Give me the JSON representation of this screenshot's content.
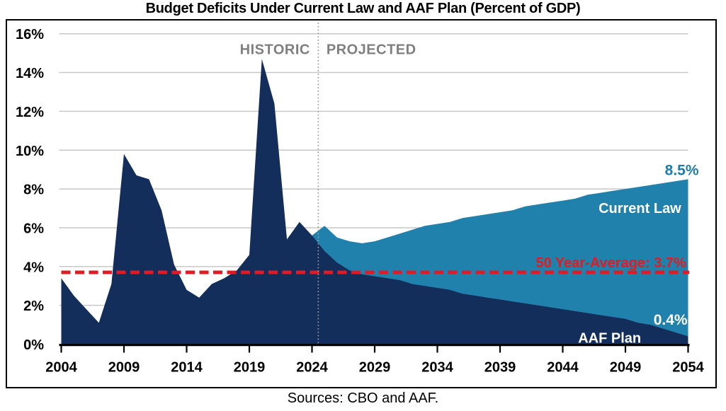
{
  "title": "Budget Deficits Under Current Law and AAF Plan (Percent of GDP)",
  "source_note": "Sources: CBO and AAF.",
  "chart_data": {
    "type": "area",
    "title": "Budget Deficits Under Current Law and AAF Plan (Percent of GDP)",
    "xlabel": "",
    "ylabel": "",
    "xlim": [
      2004,
      2054
    ],
    "ylim": [
      0,
      16
    ],
    "grid": true,
    "x_ticks": [
      2004,
      2009,
      2014,
      2019,
      2024,
      2029,
      2034,
      2039,
      2044,
      2049,
      2054
    ],
    "y_tick_values": [
      0,
      2,
      4,
      6,
      8,
      10,
      12,
      14,
      16
    ],
    "y_tick_labels": [
      "0%",
      "2%",
      "4%",
      "6%",
      "8%",
      "10%",
      "12%",
      "14%",
      "16%"
    ],
    "colors": {
      "navy": "#132E5A",
      "teal": "#2181AD",
      "red": "#E11B22",
      "gray_label": "#7F7F7F",
      "gridline": "#C8C8C8",
      "divider": "#9B9B9B",
      "axis": "#000000",
      "white": "#FFFFFF"
    },
    "series": [
      {
        "name": "Current Law",
        "color": "#2181AD",
        "x_start": 2024,
        "values": [
          5.6,
          6.1,
          5.5,
          5.3,
          5.2,
          5.3,
          5.5,
          5.7,
          5.9,
          6.1,
          6.2,
          6.3,
          6.5,
          6.6,
          6.7,
          6.8,
          6.9,
          7.1,
          7.2,
          7.3,
          7.4,
          7.5,
          7.7,
          7.8,
          7.9,
          8.0,
          8.1,
          8.2,
          8.3,
          8.4,
          8.5
        ]
      },
      {
        "name": "AAF Plan",
        "color": "#132E5A",
        "x_start": 2004,
        "values": [
          3.4,
          2.5,
          1.8,
          1.1,
          3.1,
          9.8,
          8.7,
          8.5,
          6.9,
          4.1,
          2.8,
          2.4,
          3.1,
          3.4,
          3.8,
          4.6,
          14.7,
          12.4,
          5.4,
          6.3,
          5.6,
          4.8,
          4.2,
          3.8,
          3.6,
          3.5,
          3.4,
          3.3,
          3.1,
          3.0,
          2.9,
          2.8,
          2.6,
          2.5,
          2.4,
          2.3,
          2.2,
          2.1,
          2.0,
          1.9,
          1.8,
          1.7,
          1.6,
          1.5,
          1.4,
          1.3,
          1.1,
          1.0,
          0.8,
          0.6,
          0.4
        ]
      }
    ],
    "reference_line": {
      "value": 3.7,
      "color": "#E11B22",
      "label": "50 Year-Average: 3.7%"
    },
    "divider": {
      "year": 2024.5
    },
    "annotations": [
      {
        "text": "HISTORIC",
        "year": 2023.85,
        "value": 14.95,
        "anchor": "end",
        "color": "#7F7F7F",
        "size": 20,
        "spacing": "0.5"
      },
      {
        "text": "PROJECTED",
        "year": 2025.15,
        "value": 14.95,
        "anchor": "start",
        "color": "#7F7F7F",
        "size": 20,
        "spacing": "0.5"
      },
      {
        "text": "8.5%",
        "year": 2054.85,
        "value": 8.72,
        "anchor": "end",
        "color": "#1E7EA9",
        "size": 21,
        "spacing": "0"
      },
      {
        "text": "Current Law",
        "year": 2053.45,
        "value": 6.76,
        "anchor": "end",
        "color": "#FFFFFF",
        "size": 20,
        "spacing": "0"
      },
      {
        "text": "50 Year-Average: 3.7%",
        "year": 2053.85,
        "value": 3.95,
        "anchor": "end",
        "color": "#E11B22",
        "size": 20,
        "spacing": "0"
      },
      {
        "text": "0.4%",
        "year": 2053.95,
        "value": 1.0,
        "anchor": "end",
        "color": "#FFFFFF",
        "size": 21,
        "spacing": "0"
      },
      {
        "text": "AAF Plan",
        "year": 2050.25,
        "value": 0.08,
        "anchor": "end",
        "color": "#FFFFFF",
        "size": 20,
        "spacing": "0"
      }
    ],
    "region_labels": [
      "HISTORIC",
      "PROJECTED"
    ],
    "end_values": {
      "current_law_2054": "8.5%",
      "aaf_plan_2054": "0.4%"
    }
  }
}
